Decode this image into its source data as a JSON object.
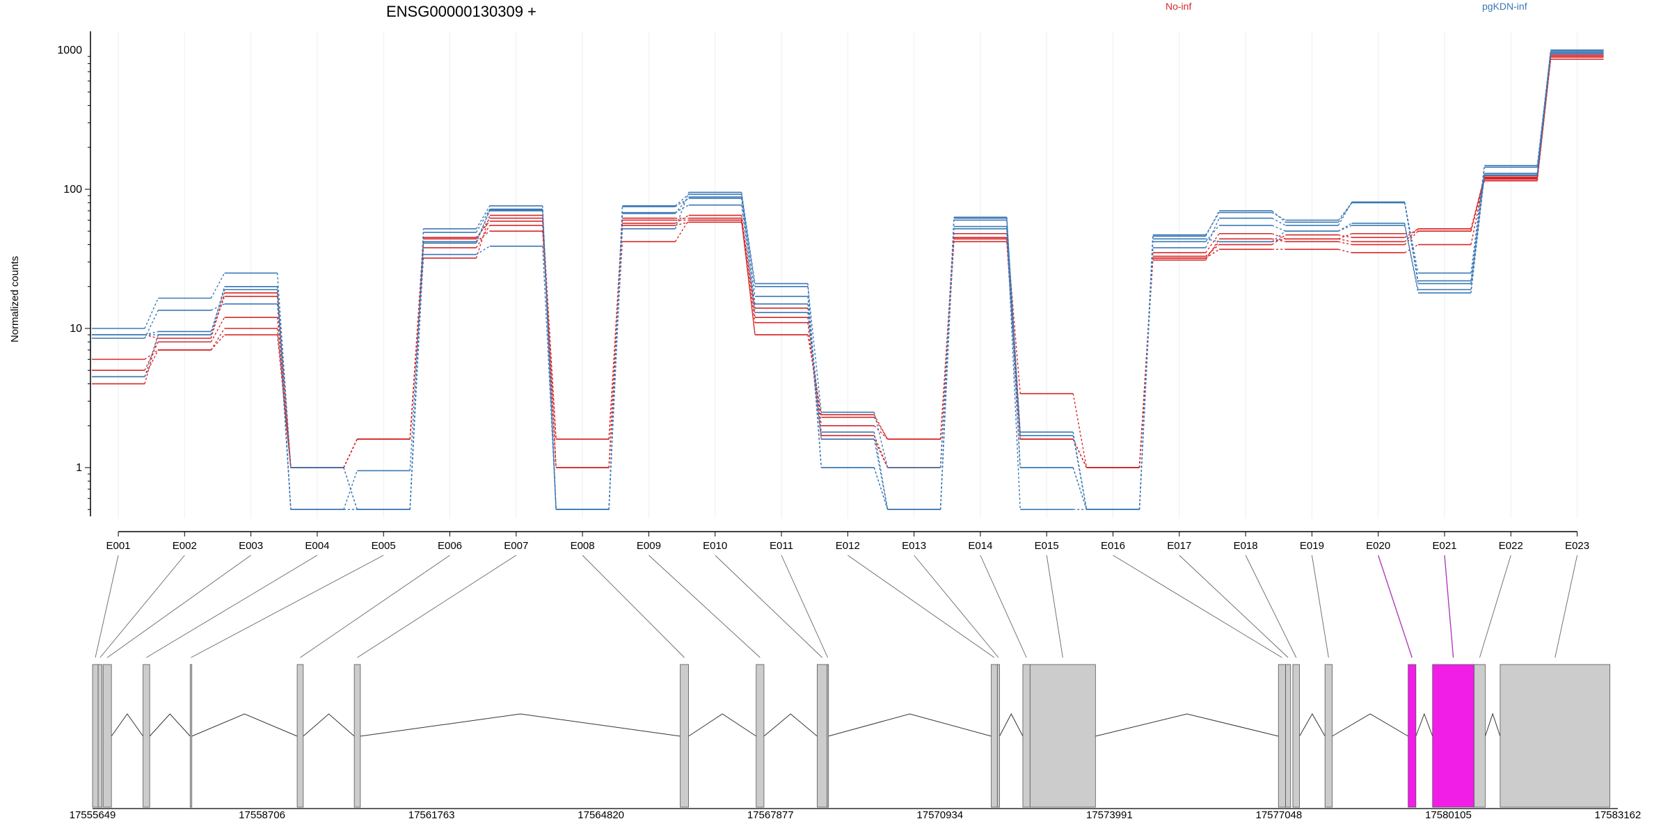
{
  "colors": {
    "group_a": "#d62728",
    "group_b": "#3a78b5",
    "exon": "#cccccc",
    "highlight": "#f01ee6",
    "connector": "#666666",
    "highlight_connector": "#b03bbd"
  },
  "chart_data": {
    "type": "line",
    "title": "ENSG00000130309 +",
    "ylabel": "Normalized counts",
    "xlabel": "",
    "yscale": "log",
    "ylim": [
      0.5,
      1100
    ],
    "yticks": [
      1,
      10,
      100,
      1000
    ],
    "ytick_labels": [
      "1",
      "10",
      "100",
      "1000"
    ],
    "grid": "vertical",
    "legend": [
      {
        "name": "No-inf",
        "position": "top",
        "color": "#d62728"
      },
      {
        "name": "pgKDN-inf",
        "position": "top-right",
        "color": "#3a78b5"
      }
    ],
    "categories": [
      "E001",
      "E002",
      "E003",
      "E004",
      "E005",
      "E006",
      "E007",
      "E008",
      "E009",
      "E010",
      "E011",
      "E012",
      "E013",
      "E014",
      "E015",
      "E016",
      "E017",
      "E018",
      "E019",
      "E020",
      "E021",
      "E022",
      "E023"
    ],
    "highlighted_exons": [
      "E020",
      "E021"
    ],
    "series": [
      {
        "group": "No-inf",
        "values": [
          6.0,
          7.0,
          10.0,
          1.0,
          1.6,
          44,
          62,
          1.0,
          42,
          60,
          9,
          2.3,
          1.6,
          48,
          3.4,
          1.0,
          32,
          37,
          37,
          35,
          40,
          118,
          860
        ]
      },
      {
        "group": "No-inf",
        "values": [
          5.0,
          8.0,
          12.0,
          1.0,
          1.6,
          38,
          55,
          1.0,
          57,
          65,
          12,
          2.0,
          1.6,
          42,
          1.6,
          1.0,
          31,
          44,
          42,
          40,
          50,
          115,
          890
        ]
      },
      {
        "group": "No-inf",
        "values": [
          4.5,
          7.0,
          9.0,
          1.0,
          1.6,
          42,
          50,
          1.6,
          55,
          58,
          11,
          1.6,
          1.0,
          44,
          1.6,
          1.0,
          33,
          40,
          47,
          45,
          52,
          122,
          900
        ]
      },
      {
        "group": "No-inf",
        "values": [
          4.0,
          9.0,
          17.0,
          1.0,
          1.6,
          32,
          65,
          1.6,
          62,
          62,
          9,
          2.4,
          1.6,
          45,
          1.6,
          1.0,
          35,
          48,
          44,
          48,
          50,
          125,
          920
        ]
      },
      {
        "group": "No-inf",
        "values": [
          9.0,
          8.5,
          18.0,
          1.0,
          1.6,
          45,
          59,
          1.0,
          60,
          60,
          14,
          1.7,
          1.0,
          44,
          1.6,
          1.0,
          32,
          42,
          44,
          42,
          52,
          120,
          940
        ]
      },
      {
        "group": "pgKDN-inf",
        "values": [
          10.0,
          16.5,
          25.0,
          1.0,
          0.5,
          52,
          76,
          0.5,
          52,
          95,
          21,
          1.0,
          0.5,
          63,
          1.0,
          0.5,
          47,
          68,
          60,
          80,
          25,
          148,
          1000
        ]
      },
      {
        "group": "pgKDN-inf",
        "values": [
          8.5,
          13.5,
          15.0,
          0.5,
          0.5,
          49,
          72,
          0.5,
          76,
          92,
          20,
          2.5,
          1.0,
          60,
          1.7,
          0.5,
          46,
          70,
          58,
          80,
          22,
          144,
          980
        ]
      },
      {
        "group": "pgKDN-inf",
        "values": [
          9.0,
          9.5,
          19.0,
          1.0,
          0.5,
          34,
          39,
          0.5,
          67,
          88,
          17,
          1.0,
          0.5,
          52,
          1.0,
          0.5,
          38,
          62,
          55,
          81,
          21,
          130,
          960
        ]
      },
      {
        "group": "pgKDN-inf",
        "values": [
          9.0,
          9.0,
          20.0,
          0.5,
          0.5,
          42,
          70,
          0.5,
          68,
          77,
          13,
          1.6,
          0.5,
          62,
          1.8,
          0.5,
          42,
          55,
          50,
          55,
          19,
          127,
          940
        ]
      },
      {
        "group": "pgKDN-inf",
        "values": [
          4.5,
          9.0,
          20.0,
          0.5,
          0.95,
          41,
          71,
          0.5,
          75,
          86,
          15,
          1.8,
          0.5,
          54,
          0.5,
          0.5,
          44,
          42,
          50,
          57,
          18,
          126,
          1000
        ]
      }
    ],
    "gene_model": {
      "coordinate_labels": [
        "17555649",
        "17558706",
        "17561763",
        "17564820",
        "17567877",
        "17570934",
        "17573991",
        "17577048",
        "17580105",
        "17583162"
      ],
      "range": [
        17555649,
        17583162
      ],
      "exons": [
        {
          "start": 17555649,
          "end": 17555750,
          "id": "E001"
        },
        {
          "start": 17555750,
          "end": 17555820,
          "id": "E002"
        },
        {
          "start": 17555840,
          "end": 17555990,
          "id": "E003"
        },
        {
          "start": 17556560,
          "end": 17556680,
          "id": "E004"
        },
        {
          "start": 17557410,
          "end": 17557440,
          "id": "E005"
        },
        {
          "start": 17559340,
          "end": 17559450,
          "id": "E006"
        },
        {
          "start": 17560370,
          "end": 17560480,
          "id": "E007"
        },
        {
          "start": 17566250,
          "end": 17566400,
          "id": "E008"
        },
        {
          "start": 17567620,
          "end": 17567760,
          "id": "E009"
        },
        {
          "start": 17568720,
          "end": 17568900,
          "id": "E010"
        },
        {
          "start": 17568900,
          "end": 17568920,
          "id": "E011"
        },
        {
          "start": 17571860,
          "end": 17571970,
          "id": "E012"
        },
        {
          "start": 17571970,
          "end": 17572010,
          "id": "E013"
        },
        {
          "start": 17572430,
          "end": 17572560,
          "id": "E014"
        },
        {
          "start": 17572560,
          "end": 17573740,
          "id": "E015"
        },
        {
          "start": 17577040,
          "end": 17577170,
          "id": "E016"
        },
        {
          "start": 17577170,
          "end": 17577260,
          "id": "E017"
        },
        {
          "start": 17577300,
          "end": 17577420,
          "id": "E018"
        },
        {
          "start": 17577880,
          "end": 17578010,
          "id": "E019"
        },
        {
          "start": 17579380,
          "end": 17579520,
          "id": "E020"
        },
        {
          "start": 17579820,
          "end": 17580570,
          "id": "E021"
        },
        {
          "start": 17580570,
          "end": 17580770,
          "id": "E022"
        },
        {
          "start": 17581040,
          "end": 17583020,
          "id": "E023"
        }
      ]
    }
  }
}
